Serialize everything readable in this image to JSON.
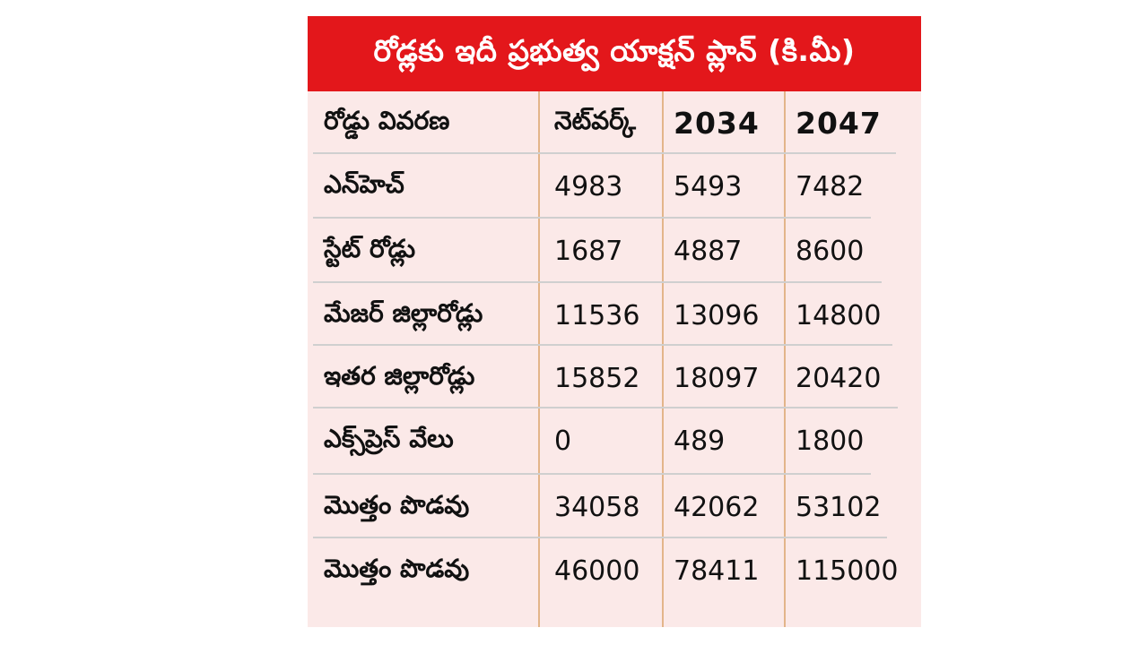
{
  "title": "రోడ్లకు ఇదీ ప్రభుత్వ యాక్షన్ ప్లాన్ (కి.మీ)",
  "columns": [
    "రోడ్డు వివరణ",
    "నెట్‌వర్క్",
    "2034",
    "2047"
  ],
  "rows": [
    [
      "ఎన్‌హెచ్",
      "4983",
      "5493",
      "7482"
    ],
    [
      "స్టేట్ రోడ్లు",
      "1687",
      "4887",
      "8600"
    ],
    [
      "మేజర్ జిల్లారోడ్లు",
      "11536",
      "13096",
      "14800"
    ],
    [
      "ఇతర జిల్లారోడ్లు",
      "15852",
      "18097",
      "20420"
    ],
    [
      "ఎక్స్‌ప్రెస్ వేలు",
      "0",
      "489",
      "1800"
    ],
    [
      "మొత్తం పొడవు",
      "34058",
      "42062",
      "53102"
    ],
    [
      "మొత్తం పొడవు",
      "46000",
      "78411",
      "115000"
    ]
  ],
  "colors": {
    "banner": "#e3171b",
    "background": "#fbe9e8",
    "column_divider": "#e3b58a",
    "row_divider": "#cfcfcf"
  }
}
